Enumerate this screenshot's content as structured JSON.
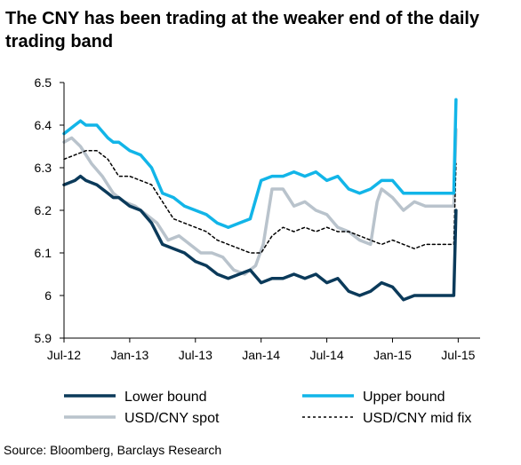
{
  "title": "The CNY has been trading at the weaker end of the daily trading band",
  "source": "Source:  Bloomberg, Barclays Research",
  "colors": {
    "lower": "#0b3a5a",
    "upper": "#12b5e8",
    "spot": "#b9c3cc",
    "fix": "#000000",
    "axis": "#000000"
  },
  "chart_data": {
    "type": "line",
    "title": "The CNY has been trading at the weaker end of the daily trading band",
    "ylim": [
      5.9,
      6.5
    ],
    "yticks": [
      "6.5",
      "6.4",
      "6.3",
      "6.2",
      "6.1",
      "6",
      "5.9"
    ],
    "xticks": [
      "Jul-12",
      "Jan-13",
      "Jul-13",
      "Jan-14",
      "Jul-14",
      "Jan-15",
      "Jul-15"
    ],
    "xrange_months": [
      0,
      38
    ],
    "legend_position": "bottom",
    "grid": false,
    "series": [
      {
        "name": "Lower bound",
        "style": "solid-thick",
        "x": [
          0,
          1,
          1.5,
          2,
          3,
          4,
          4.5,
          5,
          6,
          7,
          8,
          9,
          10,
          11,
          12,
          13,
          14,
          15,
          16,
          17,
          18,
          19,
          20,
          21,
          22,
          23,
          24,
          25,
          26,
          27,
          28,
          29,
          30,
          31,
          32,
          33,
          34,
          35,
          35.6,
          35.8
        ],
        "y": [
          6.26,
          6.27,
          6.28,
          6.27,
          6.26,
          6.24,
          6.23,
          6.23,
          6.21,
          6.2,
          6.17,
          6.12,
          6.11,
          6.1,
          6.08,
          6.07,
          6.05,
          6.04,
          6.05,
          6.06,
          6.03,
          6.04,
          6.04,
          6.05,
          6.04,
          6.05,
          6.03,
          6.04,
          6.01,
          6.0,
          6.01,
          6.03,
          6.02,
          5.99,
          6.0,
          6.0,
          6.0,
          6.0,
          6.0,
          6.2
        ]
      },
      {
        "name": "Upper bound",
        "style": "solid-thick",
        "x": [
          0,
          1,
          1.5,
          2,
          3,
          4,
          4.5,
          5,
          6,
          7,
          8,
          9,
          10,
          11,
          12,
          13,
          14,
          15,
          16,
          17,
          18,
          19,
          20,
          21,
          22,
          23,
          24,
          25,
          26,
          27,
          28,
          29,
          30,
          31,
          32,
          33,
          34,
          35,
          35.6,
          35.8
        ],
        "y": [
          6.38,
          6.4,
          6.41,
          6.4,
          6.4,
          6.37,
          6.36,
          6.36,
          6.34,
          6.33,
          6.3,
          6.24,
          6.23,
          6.21,
          6.2,
          6.19,
          6.17,
          6.16,
          6.17,
          6.18,
          6.27,
          6.28,
          6.28,
          6.29,
          6.28,
          6.29,
          6.27,
          6.28,
          6.25,
          6.24,
          6.25,
          6.27,
          6.27,
          6.24,
          6.24,
          6.24,
          6.24,
          6.24,
          6.24,
          6.46
        ]
      },
      {
        "name": "USD/CNY spot",
        "style": "solid-thick",
        "x": [
          0,
          0.7,
          1.5,
          2.5,
          3.5,
          4.5,
          5.5,
          6.5,
          7.5,
          8.5,
          9.5,
          10.5,
          11.5,
          12.5,
          13.5,
          14.5,
          15.5,
          16.5,
          17.5,
          18.2,
          19,
          20,
          21,
          22,
          23,
          24,
          25,
          26,
          27,
          28,
          28.6,
          29,
          30,
          31,
          32,
          33,
          34,
          35,
          35.6,
          35.8
        ],
        "y": [
          6.36,
          6.37,
          6.35,
          6.31,
          6.28,
          6.24,
          6.22,
          6.21,
          6.19,
          6.17,
          6.13,
          6.14,
          6.12,
          6.1,
          6.1,
          6.09,
          6.06,
          6.05,
          6.07,
          6.12,
          6.25,
          6.25,
          6.21,
          6.22,
          6.2,
          6.19,
          6.16,
          6.15,
          6.13,
          6.12,
          6.22,
          6.25,
          6.23,
          6.2,
          6.22,
          6.21,
          6.21,
          6.21,
          6.21,
          6.39
        ]
      },
      {
        "name": "USD/CNY mid fix",
        "style": "dashed",
        "x": [
          0,
          1,
          2,
          3,
          4,
          5,
          6,
          7,
          8,
          9,
          10,
          11,
          12,
          13,
          14,
          15,
          16,
          17,
          18,
          19,
          20,
          21,
          22,
          23,
          24,
          25,
          26,
          27,
          28,
          29,
          30,
          31,
          32,
          33,
          34,
          35,
          35.6,
          35.8
        ],
        "y": [
          6.32,
          6.33,
          6.34,
          6.34,
          6.32,
          6.28,
          6.28,
          6.27,
          6.26,
          6.22,
          6.18,
          6.17,
          6.16,
          6.15,
          6.13,
          6.12,
          6.11,
          6.1,
          6.1,
          6.14,
          6.16,
          6.15,
          6.16,
          6.15,
          6.16,
          6.15,
          6.15,
          6.14,
          6.13,
          6.12,
          6.13,
          6.12,
          6.11,
          6.12,
          6.12,
          6.12,
          6.12,
          6.31
        ]
      }
    ]
  }
}
